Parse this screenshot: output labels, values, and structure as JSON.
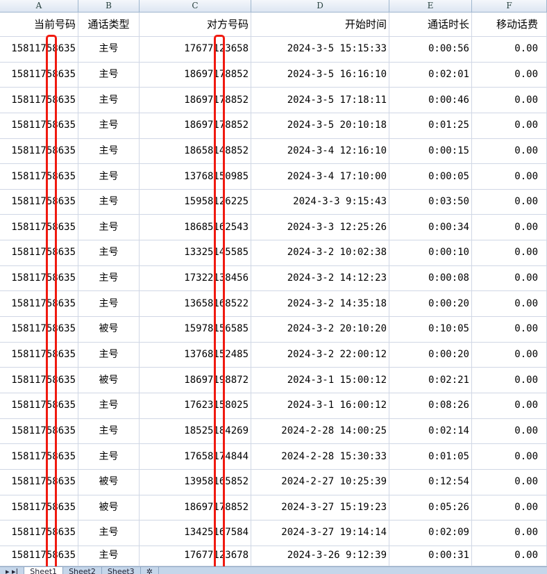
{
  "columns": [
    "A",
    "B",
    "C",
    "D",
    "E",
    "F"
  ],
  "headers": [
    "当前号码",
    "通话类型",
    "对方号码",
    "开始时间",
    "通话时长",
    "移动话费"
  ],
  "rows": [
    [
      "15811758635",
      "主号",
      "17677123658",
      "2024-3-5 15:15:33",
      "0:00:56",
      "0.00"
    ],
    [
      "15811758635",
      "主号",
      "18697178852",
      "2024-3-5 16:16:10",
      "0:02:01",
      "0.00"
    ],
    [
      "15811758635",
      "主号",
      "18697178852",
      "2024-3-5 17:18:11",
      "0:00:46",
      "0.00"
    ],
    [
      "15811758635",
      "主号",
      "18697178852",
      "2024-3-5 20:10:18",
      "0:01:25",
      "0.00"
    ],
    [
      "15811758635",
      "主号",
      "18658148852",
      "2024-3-4 12:16:10",
      "0:00:15",
      "0.00"
    ],
    [
      "15811758635",
      "主号",
      "13768150985",
      "2024-3-4 17:10:00",
      "0:00:05",
      "0.00"
    ],
    [
      "15811758635",
      "主号",
      "15958126225",
      "2024-3-3 9:15:43",
      "0:03:50",
      "0.00"
    ],
    [
      "15811758635",
      "主号",
      "18685162543",
      "2024-3-3 12:25:26",
      "0:00:34",
      "0.00"
    ],
    [
      "15811758635",
      "主号",
      "13325145585",
      "2024-3-2 10:02:38",
      "0:00:10",
      "0.00"
    ],
    [
      "15811758635",
      "主号",
      "17322138456",
      "2024-3-2 14:12:23",
      "0:00:08",
      "0.00"
    ],
    [
      "15811758635",
      "主号",
      "13658168522",
      "2024-3-2 14:35:18",
      "0:00:20",
      "0.00"
    ],
    [
      "15811758635",
      "被号",
      "15978156585",
      "2024-3-2 20:10:20",
      "0:10:05",
      "0.00"
    ],
    [
      "15811758635",
      "主号",
      "13768152485",
      "2024-3-2 22:00:12",
      "0:00:20",
      "0.00"
    ],
    [
      "15811758635",
      "被号",
      "18697198872",
      "2024-3-1 15:00:12",
      "0:02:21",
      "0.00"
    ],
    [
      "15811758635",
      "主号",
      "17623158025",
      "2024-3-1 16:00:12",
      "0:08:26",
      "0.00"
    ],
    [
      "15811758635",
      "主号",
      "18525184269",
      "2024-2-28 14:00:25",
      "0:02:14",
      "0.00"
    ],
    [
      "15811758635",
      "主号",
      "17658174844",
      "2024-2-28 15:30:33",
      "0:01:05",
      "0.00"
    ],
    [
      "15811758635",
      "被号",
      "13958165852",
      "2024-2-27 10:25:39",
      "0:12:54",
      "0.00"
    ],
    [
      "15811758635",
      "被号",
      "18697178852",
      "2024-3-27 15:19:23",
      "0:05:26",
      "0.00"
    ],
    [
      "15811758635",
      "主号",
      "13425167584",
      "2024-3-27 19:14:14",
      "0:02:09",
      "0.00"
    ],
    [
      "15811758635",
      "主号",
      "17677123678",
      "2024-3-26 9:12:39",
      "0:00:31",
      "0.00"
    ]
  ],
  "sheet_tabs": [
    "Sheet1",
    "Sheet2",
    "Sheet3"
  ],
  "highlight_color": "#f01a10"
}
